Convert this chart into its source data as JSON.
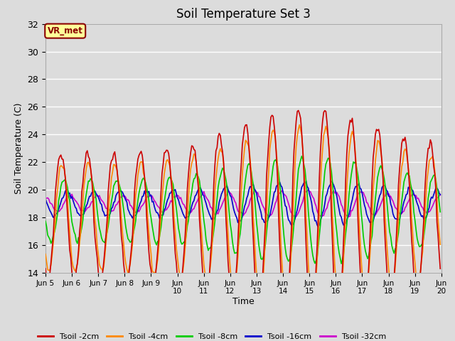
{
  "title": "Soil Temperature Set 3",
  "xlabel": "Time",
  "ylabel": "Soil Temperature (C)",
  "ylim": [
    14,
    32
  ],
  "xlim": [
    0,
    360
  ],
  "background_color": "#dcdcdc",
  "plot_bg_color": "#dcdcdc",
  "grid_color": "#ffffff",
  "annotation_text": "VR_met",
  "annotation_bg": "#ffff99",
  "annotation_border": "#8B0000",
  "series": {
    "Tsoil -2cm": {
      "color": "#cc0000",
      "lw": 1.2
    },
    "Tsoil -4cm": {
      "color": "#ff8800",
      "lw": 1.2
    },
    "Tsoil -8cm": {
      "color": "#00cc00",
      "lw": 1.2
    },
    "Tsoil -16cm": {
      "color": "#0000cc",
      "lw": 1.2
    },
    "Tsoil -32cm": {
      "color": "#cc00cc",
      "lw": 1.2
    }
  },
  "xtick_labels": [
    "Jun 5",
    "Jun 6",
    "Jun 7",
    "Jun 8",
    "Jun 9",
    "Jun 10",
    "Jun 11",
    "Jun 12",
    "Jun 13",
    "Jun 14",
    "Jun 15",
    "Jun 16",
    "Jun 17",
    "Jun 18",
    "Jun 19",
    "Jun 20"
  ],
  "xtick_positions": [
    0,
    24,
    48,
    72,
    96,
    120,
    144,
    168,
    192,
    216,
    240,
    264,
    288,
    312,
    336,
    360
  ],
  "figsize": [
    6.4,
    4.8
  ],
  "dpi": 100
}
